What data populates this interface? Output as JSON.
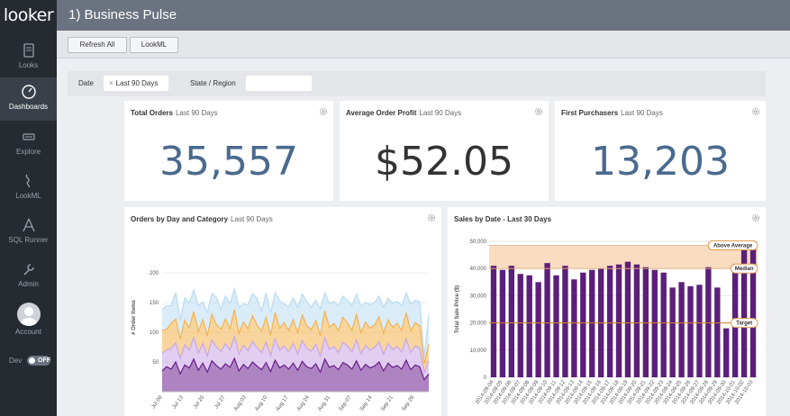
{
  "app": {
    "logo": "looker"
  },
  "sidebar": {
    "items": [
      {
        "label": "Looks",
        "icon": "book-icon"
      },
      {
        "label": "Dashboards",
        "icon": "gauge-icon"
      },
      {
        "label": "Explore",
        "icon": "compass-icon"
      },
      {
        "label": "LookML",
        "icon": "code-icon"
      },
      {
        "label": "SQL Runner",
        "icon": "triangle-icon"
      },
      {
        "label": "Admin",
        "icon": "wrench-icon"
      },
      {
        "label": "Account",
        "icon": "avatar-icon"
      }
    ],
    "dev_label": "Dev",
    "dev_toggle": "OFF"
  },
  "header": {
    "title": "1) Business Pulse"
  },
  "toolbar": {
    "refresh_label": "Refresh All",
    "lookml_label": "LookML"
  },
  "filters": {
    "date_label": "Date",
    "date_value": "Last 90 Days",
    "state_label": "State / Region",
    "state_value": ""
  },
  "tiles": {
    "total_orders": {
      "title": "Total Orders",
      "sub": "Last 90 Days",
      "value": "35,557",
      "color": "#4a6a8e"
    },
    "avg_profit": {
      "title": "Average Order Profit",
      "sub": "Last 90 Days",
      "value": "$52.05",
      "color": "#333333"
    },
    "first_purchasers": {
      "title": "First Purchasers",
      "sub": "Last 90 Days",
      "value": "13,203",
      "color": "#4a6a8e"
    },
    "orders_chart": {
      "title": "Orders by Day and Category",
      "sub": "Last 90 Days"
    },
    "sales_chart": {
      "title": "Sales by Date - Last 30 Days",
      "sub": ""
    }
  },
  "chart_data": [
    {
      "type": "area",
      "title": "Orders by Day and Category",
      "ylabel": "# Order Items",
      "ylim": [
        0,
        250
      ],
      "yticks": [
        50,
        100,
        150,
        200
      ],
      "xtick_labels": [
        "Jul 06",
        "Jul 13",
        "Jul 20",
        "Jul 27",
        "Aug 03",
        "Aug 10",
        "Aug 17",
        "Aug 24",
        "Aug 31",
        "Sep 07",
        "Sep 14",
        "Sep 21",
        "Sep 28"
      ],
      "stacked": true,
      "series_colors": [
        "#6a1e8e",
        "#c9a6e6",
        "#f4b24e",
        "#b9dcf3"
      ],
      "series": [
        {
          "values": [
            35,
            42,
            38,
            50,
            30,
            45,
            40,
            55,
            36,
            48,
            33,
            52,
            44,
            38,
            47,
            41,
            56,
            35,
            46,
            39,
            50,
            43,
            37,
            49,
            34,
            53,
            40,
            45,
            38,
            48,
            36,
            51,
            42,
            39,
            47,
            33,
            55,
            41,
            44,
            37,
            49,
            45,
            38,
            52,
            36,
            46,
            40,
            43,
            50,
            35,
            48,
            41,
            44,
            38,
            53,
            37,
            45,
            42,
            20,
            30
          ]
        },
        {
          "values": [
            30,
            28,
            35,
            32,
            26,
            34,
            30,
            36,
            29,
            33,
            27,
            35,
            31,
            30,
            34,
            29,
            37,
            28,
            32,
            30,
            35,
            31,
            29,
            34,
            27,
            36,
            30,
            32,
            29,
            33,
            28,
            35,
            31,
            29,
            33,
            27,
            36,
            30,
            32,
            29,
            34,
            32,
            29,
            35,
            28,
            32,
            30,
            31,
            34,
            28,
            33,
            30,
            32,
            29,
            36,
            29,
            32,
            31,
            12,
            22
          ]
        },
        {
          "values": [
            38,
            35,
            42,
            40,
            33,
            41,
            37,
            44,
            36,
            40,
            34,
            43,
            38,
            37,
            41,
            36,
            45,
            35,
            39,
            37,
            43,
            38,
            36,
            42,
            34,
            44,
            37,
            39,
            36,
            40,
            35,
            43,
            38,
            36,
            40,
            34,
            45,
            37,
            39,
            36,
            42,
            39,
            36,
            43,
            35,
            39,
            37,
            38,
            42,
            35,
            40,
            37,
            39,
            36,
            44,
            36,
            39,
            38,
            15,
            28
          ]
        },
        {
          "values": [
            35,
            40,
            30,
            45,
            32,
            38,
            42,
            36,
            44,
            30,
            40,
            35,
            46,
            33,
            39,
            42,
            35,
            44,
            31,
            40,
            37,
            45,
            33,
            41,
            38,
            34,
            46,
            32,
            40,
            37,
            43,
            35,
            41,
            38,
            34,
            45,
            31,
            40,
            37,
            43,
            36,
            38,
            42,
            34,
            45,
            33,
            40,
            38,
            35,
            44,
            36,
            41,
            37,
            42,
            33,
            45,
            38,
            40,
            12,
            50
          ]
        }
      ]
    },
    {
      "type": "bar",
      "title": "Sales by Date - Last 30 Days",
      "ylabel": "Total Sale Price ($)",
      "ylim": [
        0,
        50000
      ],
      "yticks": [
        0,
        10000,
        20000,
        30000,
        40000,
        50000
      ],
      "ytick_labels": [
        "0",
        "10,000",
        "20,000",
        "30,000",
        "40,000",
        "50,000"
      ],
      "categories": [
        "2014-09-04",
        "2014-09-05",
        "2014-09-06",
        "2014-09-07",
        "2014-09-08",
        "2014-09-09",
        "2014-09-10",
        "2014-09-11",
        "2014-09-12",
        "2014-09-13",
        "2014-09-14",
        "2014-09-15",
        "2014-09-16",
        "2014-09-17",
        "2014-09-18",
        "2014-09-19",
        "2014-09-20",
        "2014-09-21",
        "2014-09-22",
        "2014-09-23",
        "2014-09-24",
        "2014-09-25",
        "2014-09-26",
        "2014-09-27",
        "2014-09-28",
        "2014-09-29",
        "2014-09-30",
        "2014-10-01",
        "2014-10-02",
        "2014-10-03"
      ],
      "values": [
        41000,
        39500,
        41000,
        38000,
        37500,
        35000,
        42000,
        37500,
        41000,
        36000,
        38500,
        39500,
        40000,
        41000,
        41500,
        42500,
        41500,
        40500,
        39500,
        38500,
        33000,
        35000,
        33500,
        34000,
        40500,
        33000,
        18000,
        40000,
        47000,
        48000
      ],
      "bar_color": "#5b1f7a",
      "reference_band": {
        "from": 40000,
        "to": 48500,
        "color": "#f9dcc0"
      },
      "reference_lines": [
        {
          "label": "Above Average",
          "value": 48500
        },
        {
          "label": "Median",
          "value": 40000
        },
        {
          "label": "Target",
          "value": 20000,
          "color": "#d9822b"
        }
      ]
    }
  ]
}
